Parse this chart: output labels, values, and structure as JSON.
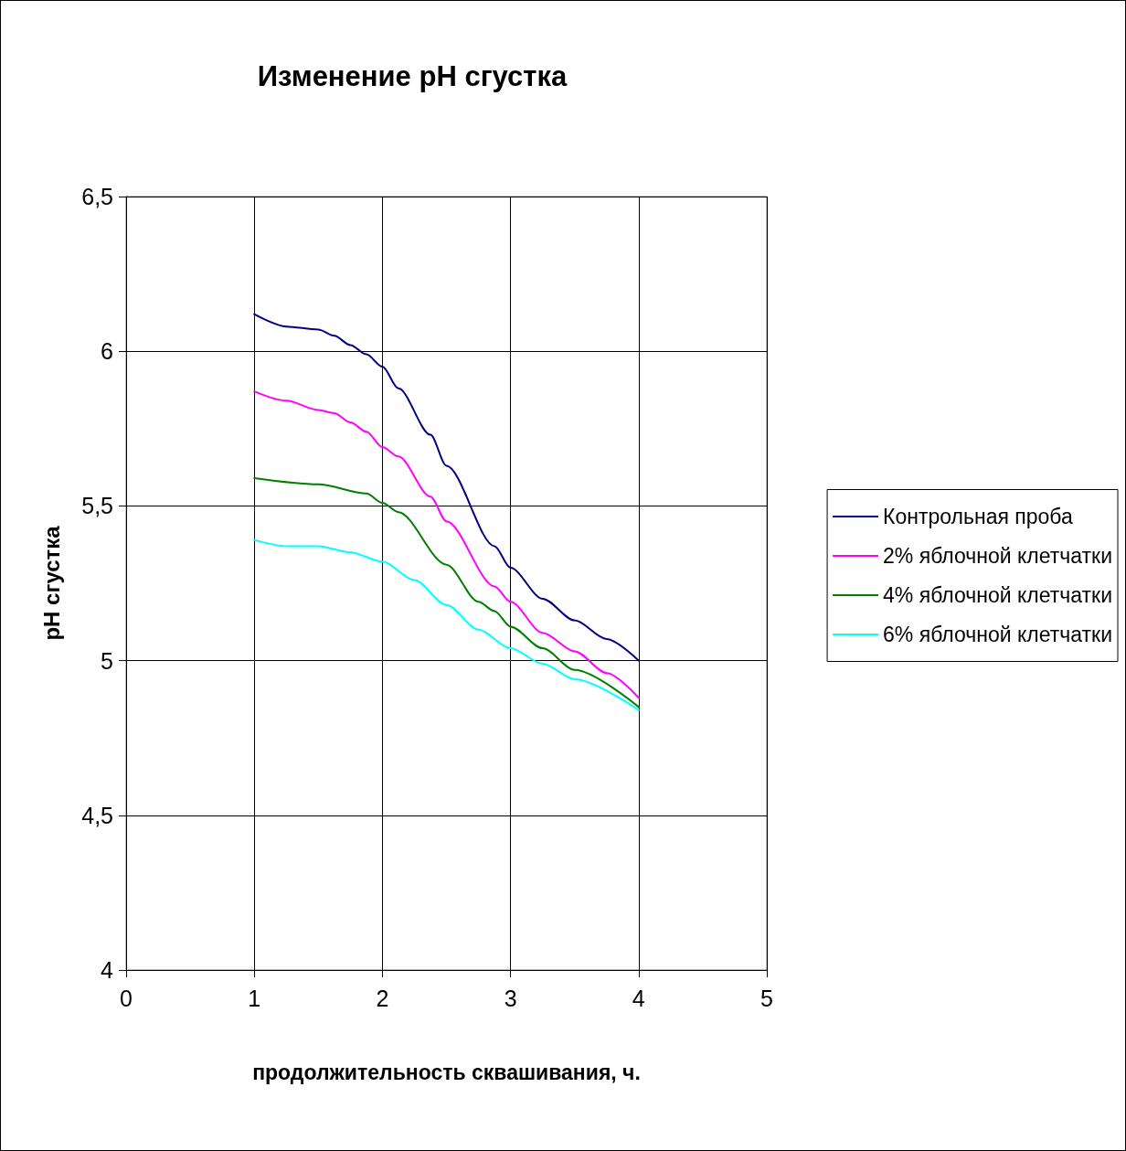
{
  "chart_data": {
    "type": "line",
    "title": "Изменение pH сгустка",
    "xlabel": "продолжительность сквашивания, ч.",
    "ylabel": "pH сгустка",
    "xlim": [
      0,
      5
    ],
    "xticks": [
      0,
      1,
      2,
      3,
      4,
      5
    ],
    "ylim": [
      4,
      6.5
    ],
    "yticks": [
      4,
      {
        "value": 4.5,
        "label": "4,5"
      },
      5,
      {
        "value": 5.5,
        "label": "5,5"
      },
      6,
      {
        "value": 6.5,
        "label": "6,5"
      }
    ],
    "grid": true,
    "legend": "right",
    "marker": "none",
    "line_style": "solid",
    "series": [
      {
        "name": "Контрольная проба",
        "color": "#000080",
        "x": [
          1,
          1.25,
          1.5,
          1.625,
          1.75,
          1.875,
          2,
          2.125,
          2.375,
          2.5,
          2.875,
          3,
          3.25,
          3.5,
          3.75,
          4
        ],
        "values": [
          6.12,
          6.08,
          6.07,
          6.05,
          6.02,
          5.99,
          5.95,
          5.88,
          5.73,
          5.63,
          5.37,
          5.3,
          5.2,
          5.13,
          5.07,
          5.0
        ]
      },
      {
        "name": "2% яблочной клетчатки",
        "color": "#ff00ff",
        "x": [
          1,
          1.25,
          1.5,
          1.625,
          1.75,
          1.875,
          2,
          2.125,
          2.375,
          2.5,
          2.875,
          3,
          3.25,
          3.5,
          3.75,
          4
        ],
        "values": [
          5.87,
          5.84,
          5.81,
          5.8,
          5.77,
          5.74,
          5.69,
          5.66,
          5.53,
          5.45,
          5.24,
          5.19,
          5.09,
          5.03,
          4.96,
          4.88
        ]
      },
      {
        "name": "4% яблочной клетчатки",
        "color": "#008000",
        "x": [
          1,
          1.5,
          1.875,
          2,
          2.125,
          2.5,
          2.75,
          2.875,
          3,
          3.25,
          3.5,
          4
        ],
        "values": [
          5.59,
          5.57,
          5.54,
          5.51,
          5.48,
          5.31,
          5.19,
          5.16,
          5.11,
          5.04,
          4.97,
          4.85
        ]
      },
      {
        "name": "6% яблочной клетчатки",
        "color": "#00ffff",
        "x": [
          1,
          1.25,
          1.5,
          1.75,
          2,
          2.25,
          2.5,
          2.75,
          3,
          3.25,
          3.5,
          4
        ],
        "values": [
          5.39,
          5.37,
          5.37,
          5.35,
          5.32,
          5.26,
          5.18,
          5.1,
          5.04,
          4.99,
          4.94,
          4.84
        ]
      }
    ]
  }
}
